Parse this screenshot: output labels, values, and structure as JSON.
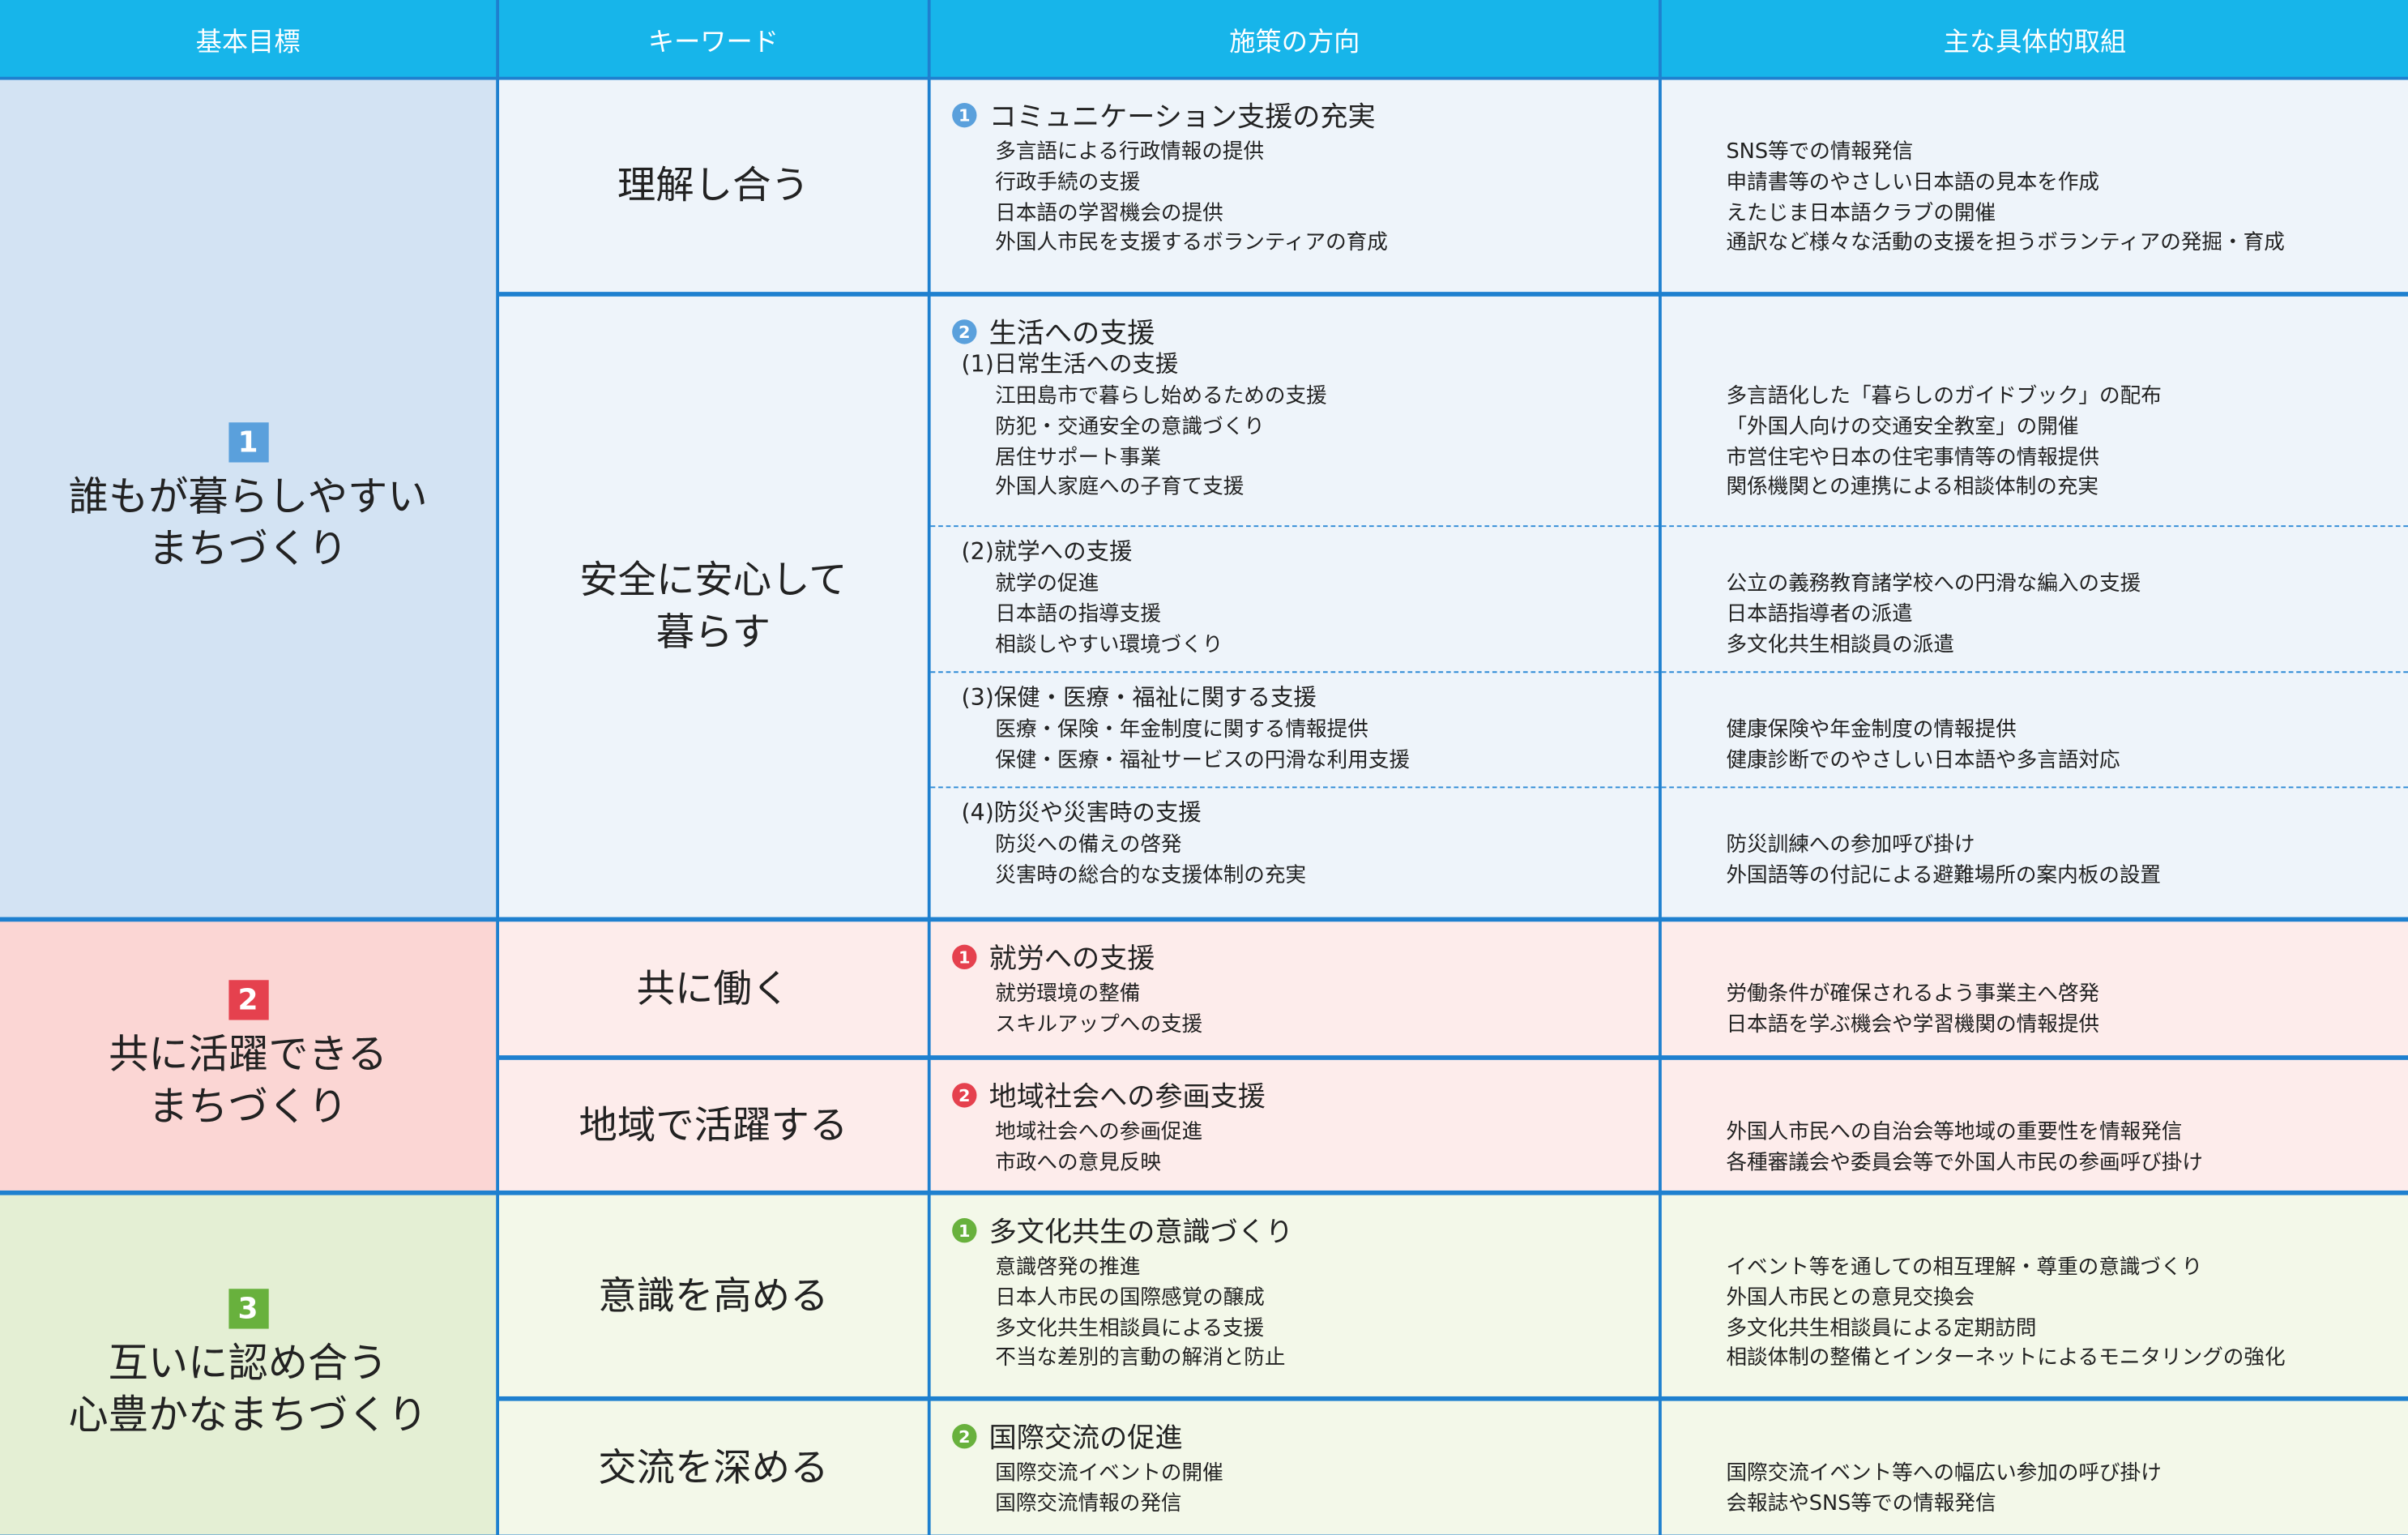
{
  "header": [
    "基本目標",
    "キーワード",
    "施策の方向",
    "主な具体的取組"
  ],
  "goals": [
    {
      "number": "1",
      "title": [
        "誰もが暮らしやすい",
        "まちづくり"
      ],
      "rows": [
        {
          "keyword": [
            "理解し合う"
          ],
          "policy": {
            "number": "1",
            "title": "コミュニケーション支援の充実",
            "items": [
              "多言語による行政情報の提供",
              "行政手続の支援",
              "日本語の学習機会の提供",
              "外国人市民を支援するボランティアの育成"
            ]
          },
          "actions": [
            "SNS等での情報発信",
            "申請書等のやさしい日本語の見本を作成",
            "えたじま日本語クラブの開催",
            "通訳など様々な活動の支援を担うボランティアの発掘・育成"
          ]
        },
        {
          "keyword": [
            "安全に安心して",
            "暮らす"
          ],
          "policy": {
            "number": "2",
            "title": "生活への支援",
            "sections": [
              {
                "heading": "(1)日常生活への支援",
                "items": [
                  "江田島市で暮らし始めるための支援",
                  "防犯・交通安全の意識づくり",
                  "居住サポート事業",
                  "外国人家庭への子育て支援"
                ],
                "actions": [
                  "多言語化した「暮らしのガイドブック」の配布",
                  "「外国人向けの交通安全教室」の開催",
                  "市営住宅や日本の住宅事情等の情報提供",
                  "関係機関との連携による相談体制の充実"
                ]
              },
              {
                "heading": "(2)就学への支援",
                "items": [
                  "就学の促進",
                  "日本語の指導支援",
                  "相談しやすい環境づくり"
                ],
                "actions": [
                  "公立の義務教育諸学校への円滑な編入の支援",
                  "日本語指導者の派遣",
                  "多文化共生相談員の派遣"
                ]
              },
              {
                "heading": "(3)保健・医療・福祉に関する支援",
                "items": [
                  "医療・保険・年金制度に関する情報提供",
                  "保健・医療・福祉サービスの円滑な利用支援"
                ],
                "actions": [
                  "健康保険や年金制度の情報提供",
                  "健康診断でのやさしい日本語や多言語対応"
                ]
              },
              {
                "heading": "(4)防災や災害時の支援",
                "items": [
                  "防災への備えの啓発",
                  "災害時の総合的な支援体制の充実"
                ],
                "actions": [
                  "防災訓練への参加呼び掛け",
                  "外国語等の付記による避難場所の案内板の設置"
                ]
              }
            ]
          }
        }
      ]
    },
    {
      "number": "2",
      "title": [
        "共に活躍できる",
        "まちづくり"
      ],
      "rows": [
        {
          "keyword": [
            "共に働く"
          ],
          "policy": {
            "number": "1",
            "title": "就労への支援",
            "items": [
              "就労環境の整備",
              "スキルアップへの支援"
            ]
          },
          "actions": [
            "労働条件が確保されるよう事業主へ啓発",
            "日本語を学ぶ機会や学習機関の情報提供"
          ]
        },
        {
          "keyword": [
            "地域で活躍する"
          ],
          "policy": {
            "number": "2",
            "title": "地域社会への参画支援",
            "items": [
              "地域社会への参画促進",
              "市政への意見反映"
            ]
          },
          "actions": [
            "外国人市民への自治会等地域の重要性を情報発信",
            "各種審議会や委員会等で外国人市民の参画呼び掛け"
          ]
        }
      ]
    },
    {
      "number": "3",
      "title": [
        "互いに認め合う",
        "心豊かなまちづくり"
      ],
      "rows": [
        {
          "keyword": [
            "意識を高める"
          ],
          "policy": {
            "number": "1",
            "title": "多文化共生の意識づくり",
            "items": [
              "意識啓発の推進",
              "日本人市民の国際感覚の醸成",
              "多文化共生相談員による支援",
              "不当な差別的言動の解消と防止"
            ]
          },
          "actions": [
            "イベント等を通しての相互理解・尊重の意識づくり",
            "外国人市民との意見交換会",
            "多文化共生相談員による定期訪問",
            "相談体制の整備とインターネットによるモニタリングの強化"
          ]
        },
        {
          "keyword": [
            "交流を深める"
          ],
          "policy": {
            "number": "2",
            "title": "国際交流の促進",
            "items": [
              "国際交流イベントの開催",
              "国際交流情報の発信"
            ]
          },
          "actions": [
            "国際交流イベント等への幅広い参加の呼び掛け",
            "会報誌やSNS等での情報発信"
          ]
        }
      ]
    }
  ]
}
